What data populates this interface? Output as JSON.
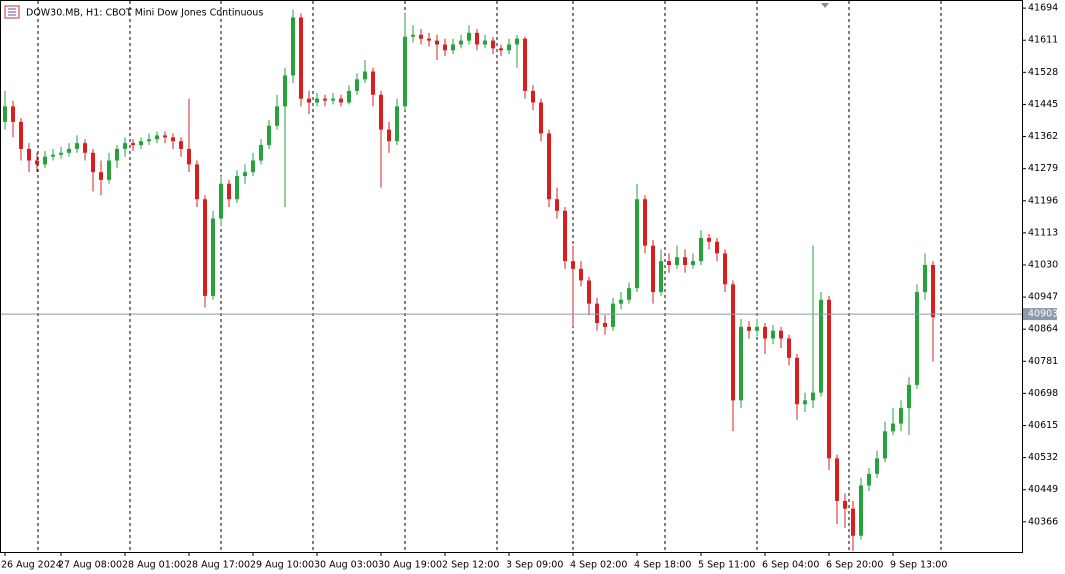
{
  "chart_data": {
    "type": "candlestick",
    "title": "DOW30.MB, H1:  CBOT Mini Dow Jones Continuous",
    "categories": [
      "26 Aug 2024",
      null,
      null,
      null,
      null,
      null,
      null,
      "27 Aug 08:00",
      null,
      null,
      null,
      null,
      null,
      null,
      null,
      "28 Aug 01:00",
      null,
      null,
      null,
      null,
      null,
      null,
      null,
      "28 Aug 17:00",
      null,
      null,
      null,
      null,
      null,
      null,
      null,
      "29 Aug 10:00",
      null,
      null,
      null,
      null,
      null,
      null,
      null,
      "30 Aug 03:00",
      null,
      null,
      null,
      null,
      null,
      null,
      null,
      "30 Aug 19:00",
      null,
      null,
      null,
      null,
      null,
      null,
      null,
      "2 Sep 12:00",
      null,
      null,
      null,
      null,
      null,
      null,
      null,
      "3 Sep 09:00",
      null,
      null,
      null,
      null,
      null,
      null,
      null,
      "4 Sep 02:00",
      null,
      null,
      null,
      null,
      null,
      null,
      null,
      "4 Sep 18:00",
      null,
      null,
      null,
      null,
      null,
      null,
      null,
      "5 Sep 11:00",
      null,
      null,
      null,
      null,
      null,
      null,
      null,
      "6 Sep 04:00",
      null,
      null,
      null,
      null,
      null,
      null,
      null,
      "6 Sep 20:00",
      null,
      null,
      null,
      null,
      null,
      null,
      null,
      "9 Sep 13:00",
      null,
      null,
      null,
      null,
      null
    ],
    "open": [
      41400,
      41440,
      41400,
      41330,
      41300,
      41290,
      41310,
      41315,
      41320,
      41330,
      41345,
      41320,
      41270,
      41250,
      41300,
      41330,
      41345,
      41340,
      41350,
      41355,
      41365,
      41360,
      41350,
      41330,
      41290,
      41200,
      40950,
      41150,
      41240,
      41200,
      41260,
      41270,
      41300,
      41340,
      41390,
      41440,
      41520,
      41670,
      41460,
      41450,
      41460,
      41455,
      41460,
      41450,
      41480,
      41510,
      41530,
      41470,
      41380,
      41350,
      41440,
      41620,
      41625,
      41615,
      41610,
      41600,
      41585,
      41600,
      41610,
      41630,
      41600,
      41610,
      41590,
      41585,
      41600,
      41615,
      41480,
      41450,
      41370,
      41200,
      41170,
      41040,
      41020,
      40990,
      40930,
      40880,
      40870,
      40930,
      40940,
      40970,
      41200,
      41080,
      40960,
      41040,
      41030,
      41050,
      41030,
      41040,
      41100,
      41090,
      41060,
      40980,
      40680,
      40870,
      40860,
      40870,
      40840,
      40860,
      40840,
      40790,
      40670,
      40680,
      40700,
      40940,
      40530,
      40420,
      40400,
      40330,
      40460,
      40490,
      40530,
      40600,
      40620,
      40660,
      40720,
      40960,
      41030
    ],
    "high": [
      41480,
      41455,
      41410,
      41345,
      41320,
      41325,
      41330,
      41335,
      41345,
      41365,
      41355,
      41330,
      41300,
      41320,
      41340,
      41360,
      41355,
      41360,
      41370,
      41375,
      41375,
      41370,
      41360,
      41460,
      41300,
      41210,
      41170,
      41260,
      41250,
      41275,
      41290,
      41320,
      41355,
      41405,
      41470,
      41540,
      41690,
      41680,
      41480,
      41475,
      41470,
      41475,
      41470,
      41495,
      41525,
      41560,
      41540,
      41480,
      41400,
      41460,
      41680,
      41650,
      41640,
      41630,
      41625,
      41615,
      41615,
      41625,
      41650,
      41640,
      41625,
      41620,
      41600,
      41615,
      41625,
      41620,
      41495,
      41460,
      41380,
      41230,
      41180,
      41080,
      41040,
      41000,
      40945,
      40900,
      40945,
      40960,
      40985,
      41240,
      41210,
      41095,
      41070,
      41060,
      41080,
      41070,
      41060,
      41120,
      41110,
      41100,
      41070,
      40990,
      40890,
      40885,
      40890,
      40880,
      40875,
      40870,
      40850,
      40800,
      40700,
      41080,
      40960,
      40950,
      40540,
      40440,
      40420,
      40480,
      40505,
      40550,
      40625,
      40660,
      40680,
      40740,
      40980,
      41060,
      41040
    ],
    "low": [
      41380,
      41360,
      41300,
      41270,
      41270,
      41280,
      41300,
      41305,
      41310,
      41320,
      41300,
      41220,
      41210,
      41240,
      41280,
      41310,
      41325,
      41330,
      41340,
      41345,
      41345,
      41330,
      41310,
      41270,
      41180,
      40920,
      40940,
      41130,
      41180,
      41190,
      41240,
      41260,
      41290,
      41330,
      41380,
      41180,
      41500,
      41440,
      41420,
      41440,
      41440,
      41445,
      41440,
      41445,
      41470,
      41500,
      41440,
      41230,
      41320,
      41340,
      41430,
      41605,
      41600,
      41595,
      41560,
      41570,
      41575,
      41590,
      41600,
      41585,
      41590,
      41575,
      41570,
      41575,
      41540,
      41460,
      41430,
      41350,
      41180,
      41150,
      41020,
      40870,
      40975,
      40900,
      40860,
      40850,
      40860,
      40915,
      40930,
      40960,
      41060,
      40930,
      40950,
      41010,
      41020,
      41010,
      41020,
      41030,
      41070,
      41040,
      40960,
      40600,
      40660,
      40840,
      40845,
      40800,
      40825,
      40815,
      40770,
      40630,
      40650,
      40660,
      40690,
      40500,
      40360,
      40350,
      40290,
      40320,
      40445,
      40480,
      40520,
      40590,
      40600,
      40590,
      40710,
      40940,
      40780
    ],
    "close": [
      41440,
      41400,
      41330,
      41300,
      41290,
      41310,
      41315,
      41320,
      41330,
      41345,
      41320,
      41270,
      41250,
      41300,
      41330,
      41345,
      41340,
      41350,
      41355,
      41365,
      41360,
      41350,
      41330,
      41290,
      41200,
      40950,
      41150,
      41240,
      41200,
      41260,
      41270,
      41300,
      41340,
      41390,
      41440,
      41520,
      41670,
      41460,
      41450,
      41460,
      41455,
      41460,
      41450,
      41480,
      41510,
      41530,
      41470,
      41380,
      41350,
      41440,
      41620,
      41625,
      41615,
      41610,
      41600,
      41585,
      41600,
      41610,
      41630,
      41600,
      41610,
      41590,
      41585,
      41600,
      41615,
      41480,
      41450,
      41370,
      41200,
      41170,
      41040,
      41020,
      40990,
      40930,
      40880,
      40870,
      40930,
      40940,
      40970,
      41200,
      41080,
      40960,
      41040,
      41030,
      41050,
      41030,
      41040,
      41100,
      41090,
      41060,
      40980,
      40680,
      40870,
      40860,
      40870,
      40840,
      40860,
      40840,
      40790,
      40670,
      40680,
      40700,
      40940,
      40530,
      40420,
      40400,
      40330,
      40460,
      40490,
      40530,
      40600,
      40620,
      40660,
      40720,
      40960,
      41030,
      40895
    ],
    "up_color": "#26a13c",
    "down_color": "#d62020",
    "last_price": 40903,
    "ylim": [
      40288,
      41715
    ],
    "yticks": [
      41694,
      41611,
      41528,
      41445,
      41362,
      41279,
      41196,
      41113,
      41030,
      40947,
      40864,
      40781,
      40698,
      40615,
      40532,
      40449,
      40366
    ]
  }
}
